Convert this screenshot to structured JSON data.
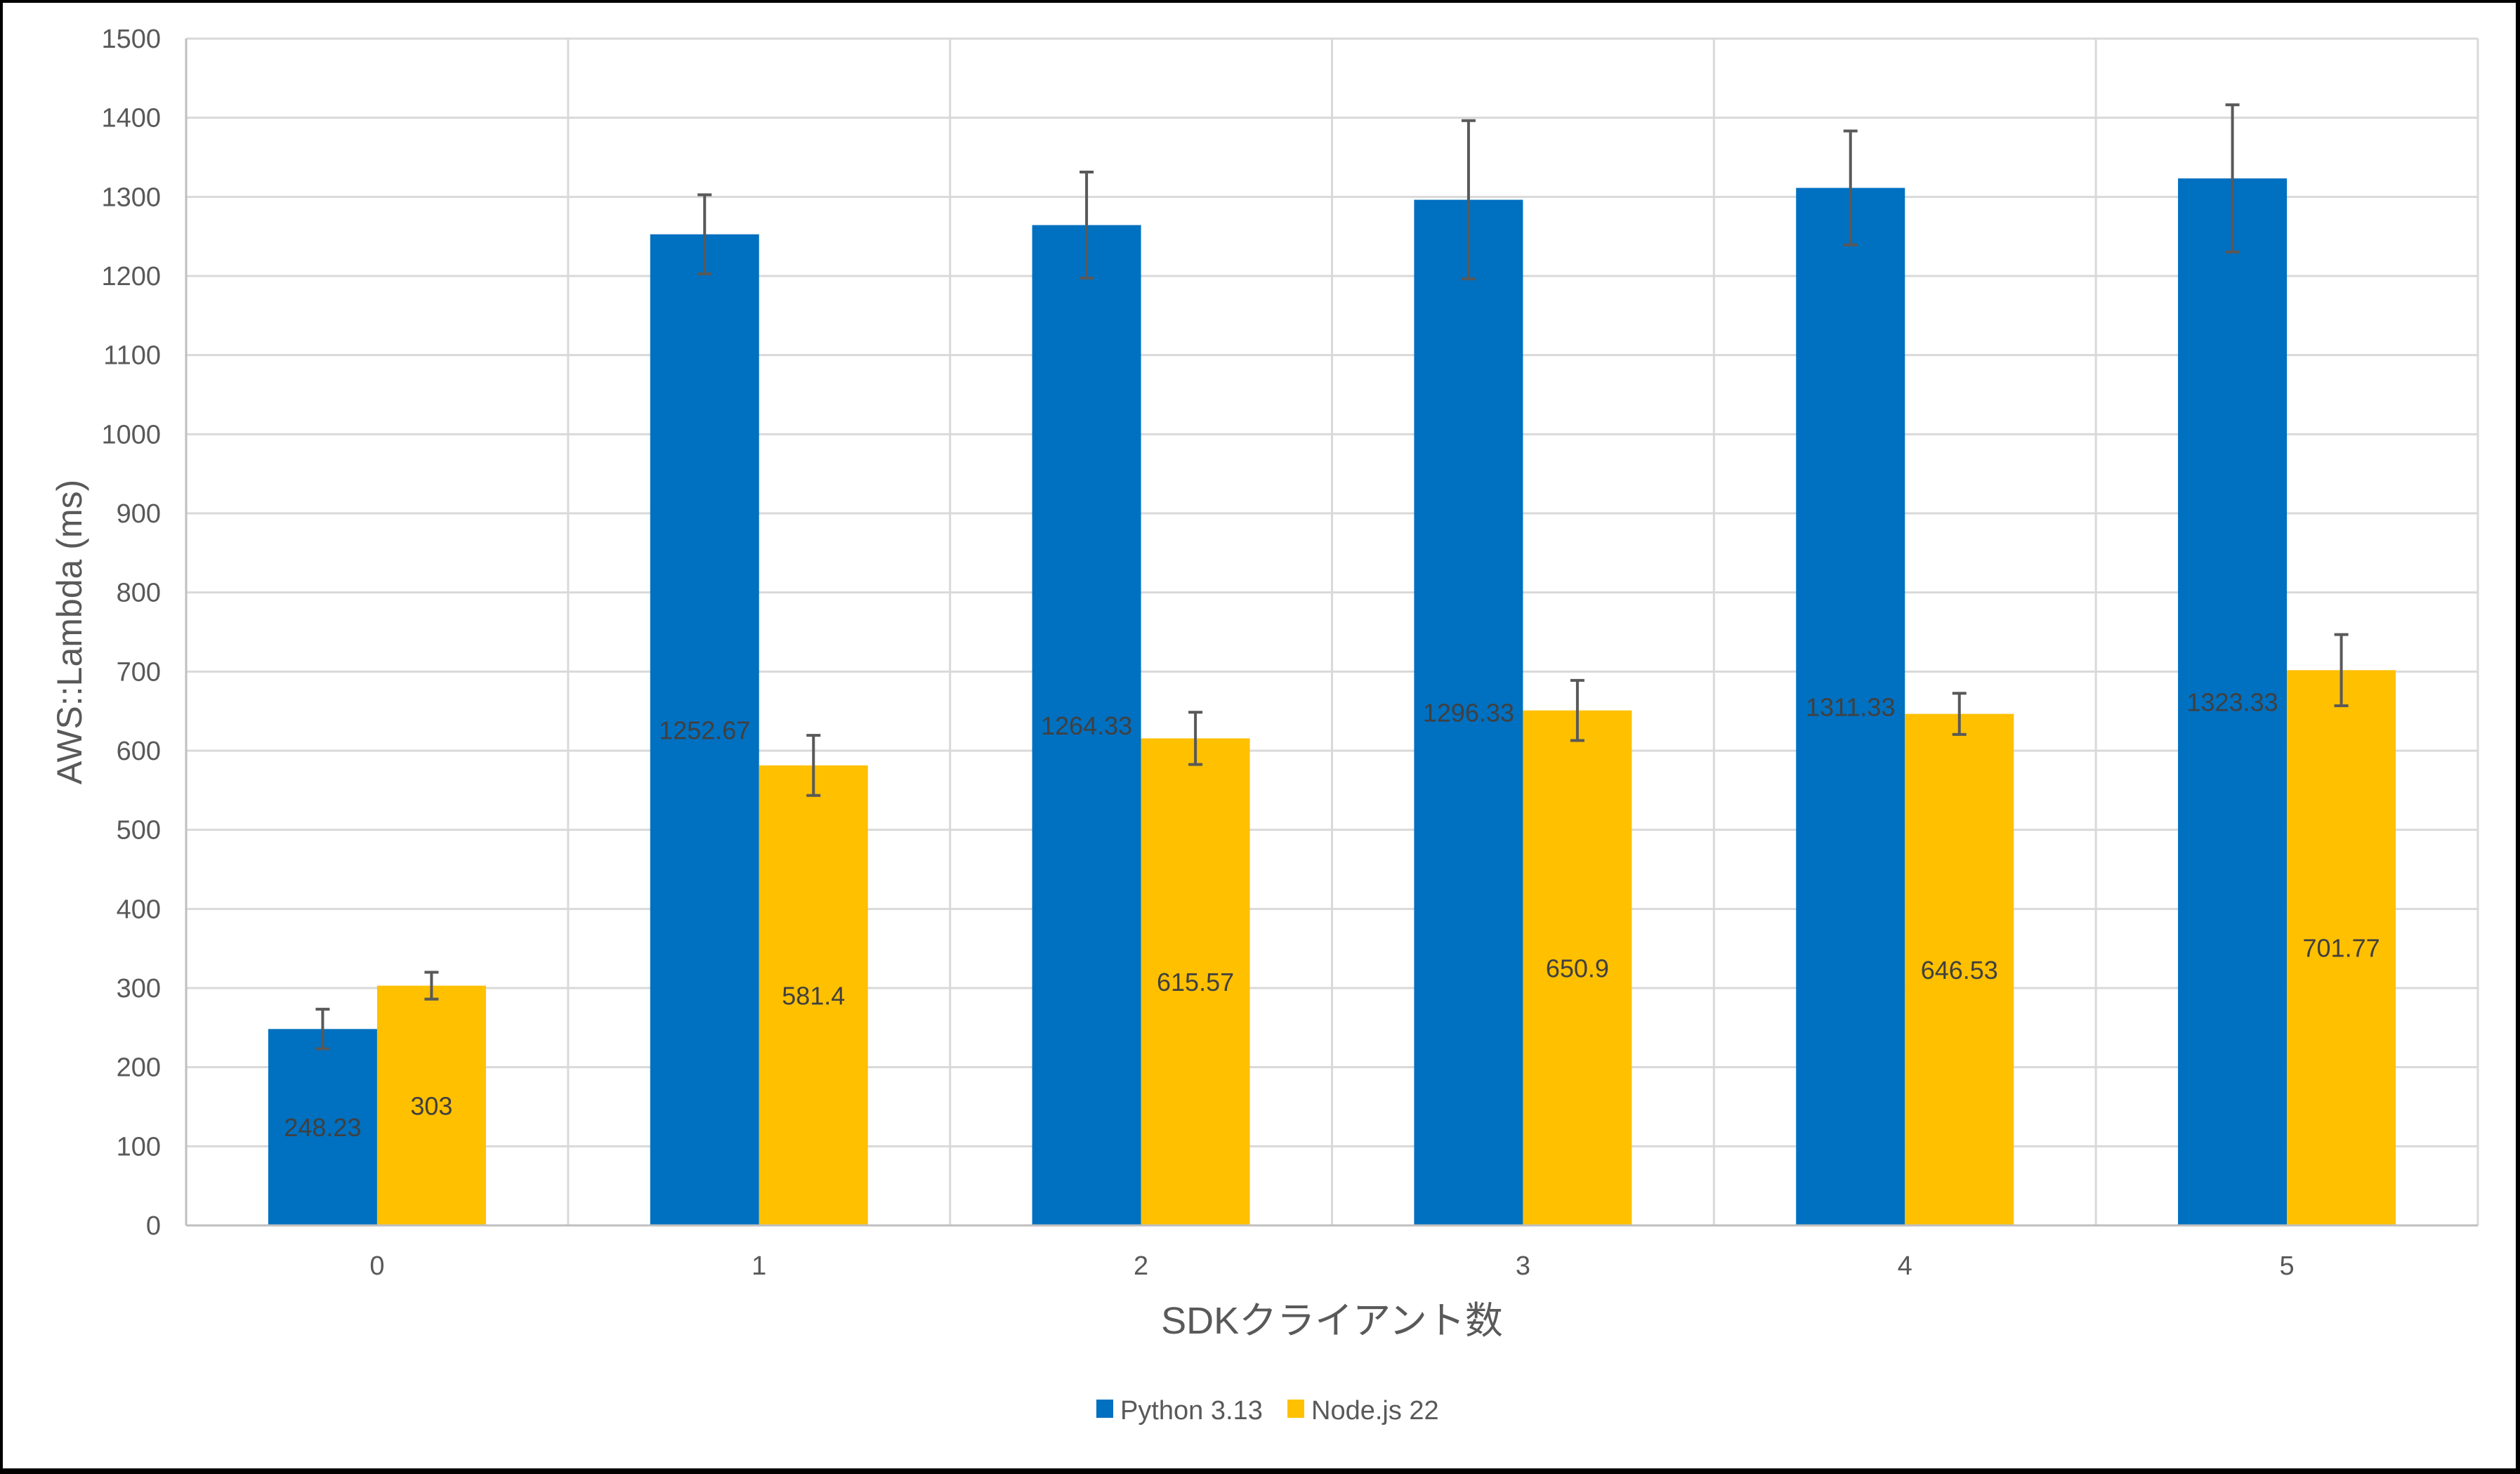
{
  "chart_data": {
    "type": "bar",
    "title": "",
    "xlabel": "SDKクライアント数",
    "ylabel": "AWS::Lambda (ms)",
    "categories": [
      "0",
      "1",
      "2",
      "3",
      "4",
      "5"
    ],
    "series": [
      {
        "name": "Python 3.13",
        "color": "#0070C0",
        "values": [
          248.23,
          1252.67,
          1264.33,
          1296.33,
          1311.33,
          1323.33
        ],
        "error": [
          25,
          50,
          67,
          100,
          72,
          93
        ]
      },
      {
        "name": "Node.js 22",
        "color": "#FFC000",
        "values": [
          303,
          581.4,
          615.57,
          650.9,
          646.53,
          701.77
        ],
        "error": [
          17,
          38,
          33,
          38,
          26,
          45
        ]
      }
    ],
    "ylim": [
      0,
      1500
    ],
    "yticks": [
      0,
      100,
      200,
      300,
      400,
      500,
      600,
      700,
      800,
      900,
      1000,
      1100,
      1200,
      1300,
      1400,
      1500
    ],
    "grid": true,
    "legend_position": "bottom"
  }
}
